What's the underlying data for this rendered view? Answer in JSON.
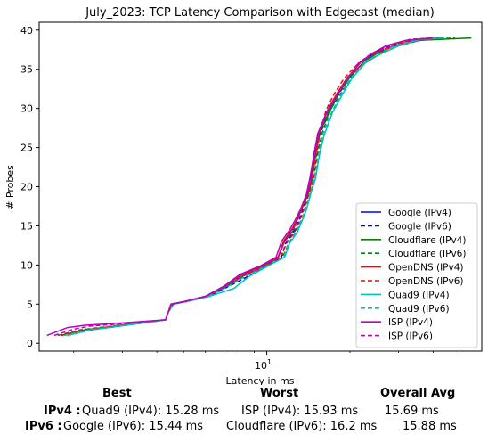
{
  "chart_data": {
    "type": "line",
    "title": "July_2023: TCP Latency Comparison with Edgecast (median)",
    "xlabel": "Latency in ms",
    "ylabel": "# Probes",
    "xscale": "log",
    "xlim": [
      1.5,
      60
    ],
    "ylim": [
      -1,
      41
    ],
    "x_ticks": [
      {
        "value": 10,
        "label": "10^1"
      }
    ],
    "y_ticks": [
      0,
      5,
      10,
      15,
      20,
      25,
      30,
      35,
      40
    ],
    "grid": false,
    "legend_position": "lower right",
    "series": [
      {
        "name": "Google (IPv4)",
        "color": "#0000ff",
        "dash": "solid",
        "x": [
          1.8,
          2.2,
          3.0,
          4.3,
          4.4,
          4.5,
          5.0,
          6.0,
          7.0,
          8.0,
          9.5,
          11.0,
          11.5,
          12.3,
          12.8,
          13.3,
          14.0,
          14.4,
          14.8,
          15.3,
          16.5,
          18.0,
          19.5,
          22.0,
          24.0,
          27.0,
          32.0,
          42.0
        ],
        "y": [
          1,
          1.7,
          2.3,
          3,
          4,
          5,
          5.3,
          6,
          7.3,
          8.7,
          9.8,
          11,
          13,
          14.5,
          15.5,
          17,
          18.8,
          20.5,
          24,
          26.8,
          29.5,
          31.8,
          33.8,
          36,
          36.8,
          38,
          38.7,
          39
        ]
      },
      {
        "name": "Google (IPv6)",
        "color": "#0000ff",
        "dash": "dashed",
        "x": [
          1.9,
          2.3,
          3.1,
          4.3,
          4.4,
          4.6,
          5.0,
          6.2,
          7.3,
          8.5,
          10.0,
          11.3,
          11.7,
          12.5,
          13.0,
          13.5,
          14.0,
          14.6,
          15.0,
          15.5,
          16.8,
          18.2,
          19.8,
          22.5,
          25.0,
          28.0,
          33.0,
          40.0
        ],
        "y": [
          1,
          1.7,
          2.3,
          3,
          4,
          5,
          5.3,
          6,
          7.3,
          8.5,
          9.8,
          11,
          12.8,
          14.2,
          15.5,
          17,
          19,
          21,
          24,
          26.5,
          29.5,
          31.8,
          33.8,
          36,
          37,
          38,
          38.8,
          39
        ]
      },
      {
        "name": "Cloudflare (IPv4)",
        "color": "#008000",
        "dash": "solid",
        "x": [
          1.85,
          2.2,
          3.0,
          4.3,
          4.4,
          4.5,
          5.0,
          6.0,
          7.2,
          8.2,
          9.8,
          11.0,
          11.6,
          12.4,
          12.9,
          13.4,
          14.1,
          14.6,
          15.1,
          15.6,
          17.0,
          18.4,
          20.0,
          22.5,
          25.0,
          29.0,
          36.0,
          55.0
        ],
        "y": [
          1,
          1.7,
          2.3,
          3,
          4,
          5,
          5.3,
          6,
          7.3,
          8.6,
          9.8,
          11,
          13,
          14.3,
          15.8,
          17.2,
          19,
          21,
          24.5,
          27,
          30,
          32.2,
          34,
          36,
          37,
          38,
          38.7,
          39
        ]
      },
      {
        "name": "Cloudflare (IPv6)",
        "color": "#008000",
        "dash": "dashed",
        "x": [
          1.75,
          2.1,
          2.9,
          4.3,
          4.4,
          4.5,
          5.0,
          6.1,
          7.1,
          8.3,
          9.9,
          11.4,
          12.0,
          12.8,
          13.3,
          13.8,
          14.3,
          14.9,
          15.3,
          15.9,
          17.1,
          18.6,
          20.3,
          23.0,
          26.0,
          30.0,
          37.0,
          48.0
        ],
        "y": [
          1,
          1.7,
          2.3,
          3,
          4,
          5,
          5.3,
          6,
          7.3,
          8.6,
          9.8,
          11,
          12.8,
          14.3,
          15.6,
          17,
          19,
          21,
          24.5,
          27,
          30,
          32,
          34,
          36,
          37,
          38,
          38.8,
          39
        ]
      },
      {
        "name": "OpenDNS (IPv4)",
        "color": "#ff0000",
        "dash": "solid",
        "x": [
          1.8,
          2.2,
          3.0,
          4.3,
          4.4,
          4.5,
          5.0,
          6.0,
          7.0,
          8.1,
          9.6,
          11.0,
          11.5,
          12.3,
          12.8,
          13.3,
          14.0,
          14.5,
          14.9,
          15.4,
          16.6,
          18.0,
          19.6,
          22.0,
          24.5,
          28.0,
          33.0,
          43.0
        ],
        "y": [
          1,
          1.7,
          2.3,
          3,
          4,
          5,
          5.3,
          6,
          7.3,
          8.7,
          9.9,
          11,
          13,
          14.5,
          15.7,
          17,
          19,
          21,
          24,
          26.8,
          29.8,
          32,
          34,
          35.5,
          36.5,
          37.8,
          38.6,
          39
        ]
      },
      {
        "name": "OpenDNS (IPv6)",
        "color": "#ff0000",
        "dash": "dashed",
        "x": [
          1.8,
          2.25,
          3.05,
          4.3,
          4.4,
          4.55,
          5.0,
          6.1,
          7.1,
          8.2,
          9.8,
          11.2,
          11.8,
          12.6,
          13.1,
          13.6,
          14.2,
          14.8,
          15.2,
          15.6,
          16.4,
          17.5,
          19.0,
          21.5,
          24.0,
          27.5,
          32.0,
          38.0
        ],
        "y": [
          1,
          1.7,
          2.3,
          3,
          4,
          5,
          5.3,
          6,
          7.3,
          8.6,
          9.8,
          11,
          12.8,
          14.2,
          15.5,
          17,
          19,
          21,
          24.5,
          27,
          29.8,
          31.8,
          33.8,
          35.8,
          36.8,
          37.8,
          38.6,
          39
        ]
      },
      {
        "name": "Quad9 (IPv4)",
        "color": "#00bfbf",
        "dash": "solid",
        "x": [
          1.9,
          2.3,
          3.1,
          4.3,
          4.4,
          4.6,
          5.1,
          6.2,
          7.6,
          8.6,
          10.0,
          11.6,
          12.1,
          12.9,
          13.4,
          13.9,
          14.4,
          15.0,
          15.5,
          16.1,
          17.3,
          18.8,
          20.3,
          23.0,
          26.0,
          30.0,
          36.0,
          44.0
        ],
        "y": [
          1,
          1.7,
          2.3,
          3,
          4,
          5,
          5.3,
          6,
          7,
          8.5,
          9.8,
          11,
          12.8,
          14.2,
          15.6,
          17,
          19,
          21,
          24,
          26.5,
          29.5,
          31.8,
          33.8,
          36,
          37,
          38,
          38.8,
          39
        ]
      },
      {
        "name": "Quad9 (IPv6)",
        "color": "#00bfbf",
        "dash": "dashed",
        "x": [
          1.85,
          2.25,
          3.05,
          4.3,
          4.4,
          4.55,
          5.05,
          6.15,
          7.2,
          8.4,
          9.9,
          11.5,
          12.0,
          12.8,
          13.3,
          13.8,
          14.3,
          14.9,
          15.4,
          16.0,
          17.2,
          18.6,
          20.1,
          22.8,
          25.5,
          29.0,
          35.0,
          42.0
        ],
        "y": [
          1,
          1.7,
          2.3,
          3,
          4,
          5,
          5.3,
          6,
          7.2,
          8.6,
          9.8,
          11,
          12.8,
          14.3,
          15.6,
          17,
          19,
          21,
          24.2,
          26.8,
          29.6,
          31.8,
          33.8,
          36,
          37,
          38,
          38.8,
          39
        ]
      },
      {
        "name": "ISP (IPv4)",
        "color": "#bf00bf",
        "dash": "solid",
        "x": [
          1.6,
          1.9,
          2.2,
          3.0,
          4.3,
          4.4,
          4.5,
          5.0,
          6.0,
          7.0,
          8.0,
          9.5,
          10.8,
          11.3,
          12.1,
          12.6,
          13.2,
          13.9,
          14.3,
          14.8,
          15.3,
          16.5,
          18.0,
          19.5,
          22.0,
          24.0,
          27.0,
          32.0,
          40.0
        ],
        "y": [
          1,
          2,
          2.3,
          2.6,
          3,
          4,
          5,
          5.3,
          6,
          7.3,
          8.8,
          9.9,
          11,
          13,
          14.5,
          15.6,
          17,
          19,
          21,
          24,
          26.8,
          29.6,
          31.8,
          33.8,
          36,
          37,
          38,
          38.7,
          39
        ]
      },
      {
        "name": "ISP (IPv6)",
        "color": "#bf00bf",
        "dash": "dashed",
        "x": [
          1.7,
          2.0,
          2.3,
          3.0,
          4.3,
          4.4,
          4.55,
          5.0,
          6.0,
          7.1,
          8.1,
          9.7,
          11.0,
          11.5,
          12.3,
          12.8,
          13.3,
          14.0,
          14.5,
          15.0,
          15.5,
          16.7,
          18.2,
          19.5,
          21.5,
          23.5,
          26.0,
          29.0,
          34.0
        ],
        "y": [
          1,
          1.8,
          2.2,
          2.5,
          3,
          4,
          5,
          5.3,
          6,
          7.3,
          8.7,
          9.8,
          11,
          12.8,
          14.3,
          15.6,
          17,
          19,
          21,
          24.3,
          27,
          29.8,
          32,
          33.8,
          35.8,
          36.8,
          37.5,
          38.3,
          38.8
        ]
      }
    ]
  },
  "summary": {
    "headers": {
      "best": "Best",
      "worst": "Worst",
      "overall": "Overall Avg"
    },
    "rows": [
      {
        "label": "IPv4 :",
        "best": "Quad9 (IPv4): 15.28 ms",
        "worst": "ISP (IPv4): 15.93 ms",
        "avg": "15.69 ms"
      },
      {
        "label": "IPv6 :",
        "best": "Google (IPv6): 15.44 ms",
        "worst": "Cloudflare (IPv6): 16.2 ms",
        "avg": "15.88 ms"
      }
    ]
  }
}
